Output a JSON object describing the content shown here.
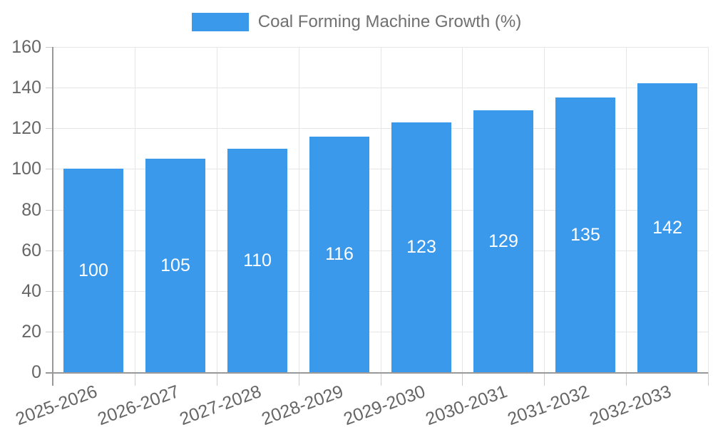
{
  "legend": {
    "label": "Coal Forming Machine Growth (%)"
  },
  "chart_data": {
    "type": "bar",
    "title": "",
    "xlabel": "",
    "ylabel": "",
    "categories": [
      "2025-2026",
      "2026-2027",
      "2027-2028",
      "2028-2029",
      "2029-2030",
      "2030-2031",
      "2031-2032",
      "2032-2033"
    ],
    "values": [
      100,
      105,
      110,
      116,
      123,
      129,
      135,
      142
    ],
    "series_name": "Coal Forming Machine Growth (%)",
    "ylim": [
      0,
      160
    ],
    "ytick_step": 20,
    "ytick_labels": [
      "0",
      "20",
      "40",
      "60",
      "80",
      "100",
      "120",
      "140",
      "160"
    ],
    "grid": true,
    "legend_position": "top",
    "value_labels_inside_bars": true,
    "colors": {
      "bar": "#3b99ec",
      "value_label": "#ffffff",
      "axis": "#999999",
      "grid": "#e6e6e6",
      "tick": "#cccccc",
      "label": "#666666",
      "legend_text": "#707070",
      "background": "#ffffff"
    }
  }
}
